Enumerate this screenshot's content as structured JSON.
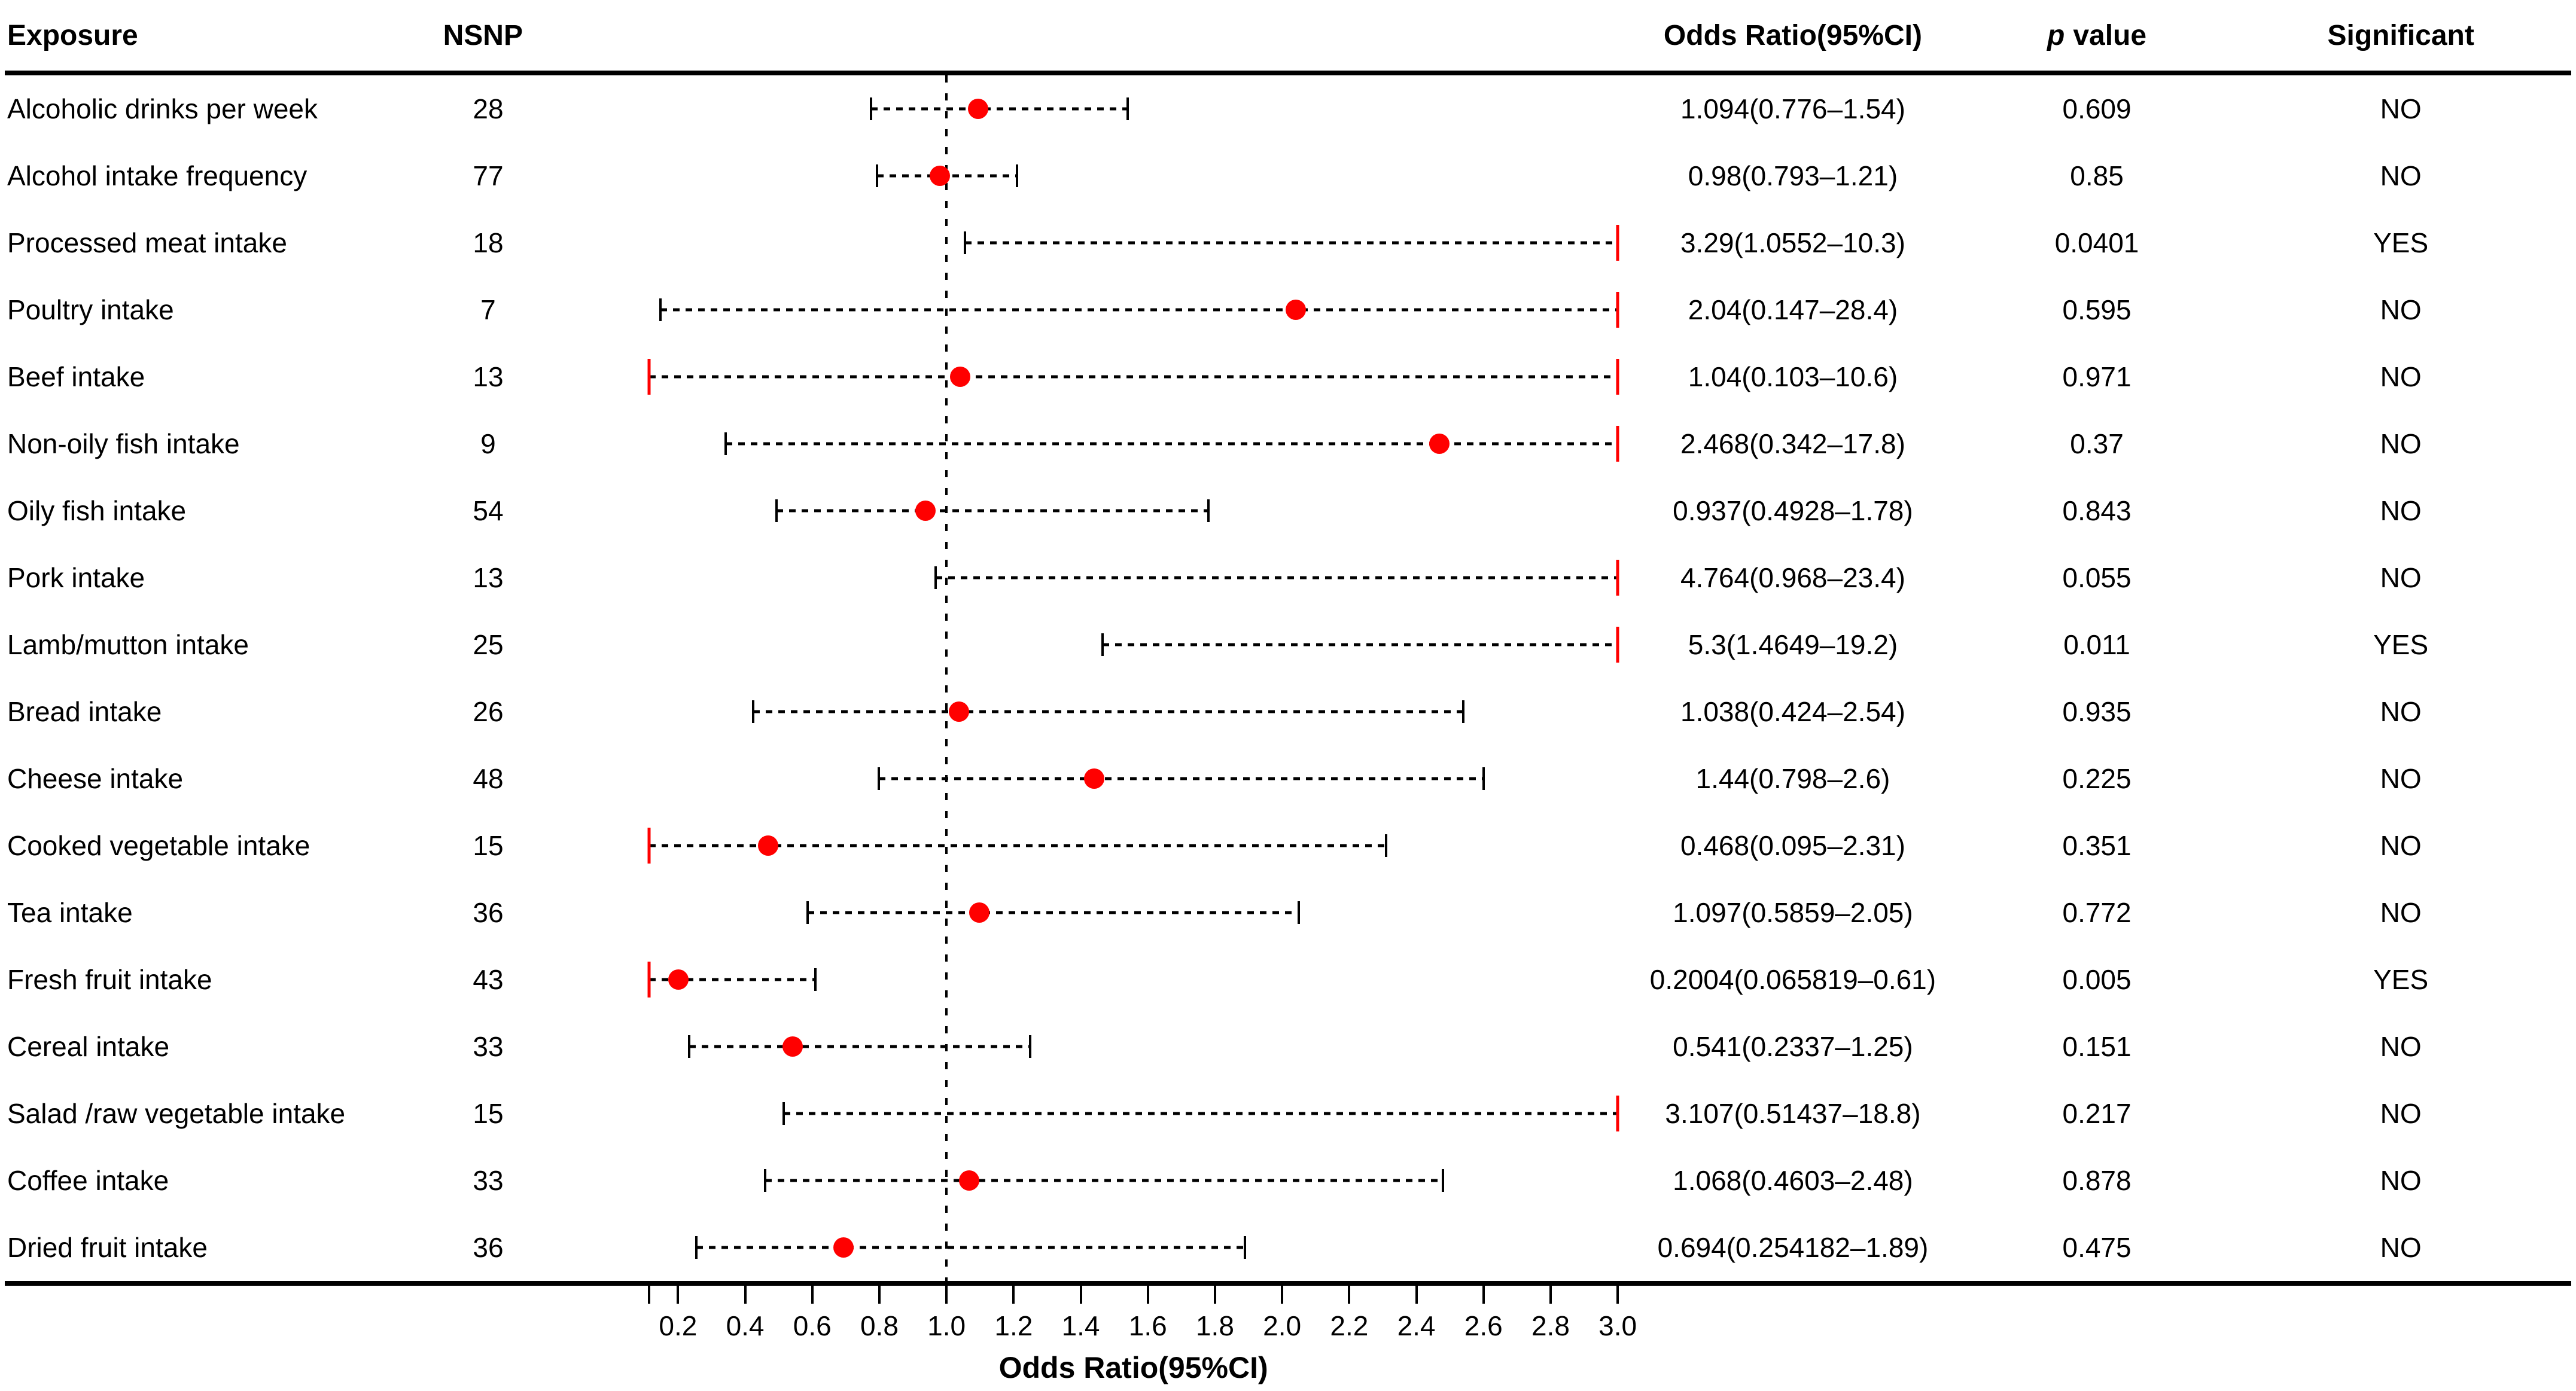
{
  "header": {
    "exposure": "Exposure",
    "nsnp": "NSNP",
    "or_ci": "Odds Ratio(95%CI)",
    "p_italic": "p",
    "p_rest": "value",
    "significant": "Significant"
  },
  "colors": {
    "point_red": "#FF0000",
    "clip_red": "#FF0000",
    "line_black": "#000000"
  },
  "chart_data": {
    "type": "scatter",
    "subtype": "forest-plot",
    "title": "",
    "xlabel": "Odds Ratio(95%CI)",
    "xlim": [
      0.114,
      3.0
    ],
    "reference_line": 1.0,
    "grid": false,
    "xticks": [
      0.2,
      0.4,
      0.6,
      0.8,
      1.0,
      1.2,
      1.4,
      1.6,
      1.8,
      2.0,
      2.2,
      2.4,
      2.6,
      2.8,
      3.0
    ],
    "xtick_labels": [
      "0.2",
      "0.4",
      "0.6",
      "0.8",
      "1.0",
      "1.2",
      "1.4",
      "1.6",
      "1.8",
      "2.0",
      "2.2",
      "2.4",
      "2.6",
      "2.8",
      "3.0"
    ],
    "rows": [
      {
        "exposure": "Alcoholic drinks per week",
        "nsnp": "28",
        "or": 1.094,
        "ci_low": 0.776,
        "ci_high": 1.54,
        "or_ci": "1.094(0.776–1.54)",
        "p": "0.609",
        "significant": "NO"
      },
      {
        "exposure": "Alcohol intake frequency",
        "nsnp": "77",
        "or": 0.98,
        "ci_low": 0.793,
        "ci_high": 1.21,
        "or_ci": "0.98(0.793–1.21)",
        "p": "0.85",
        "significant": "NO"
      },
      {
        "exposure": "Processed meat intake",
        "nsnp": "18",
        "or": 3.29,
        "ci_low": 1.0552,
        "ci_high": 10.3,
        "or_ci": "3.29(1.0552–10.3)",
        "p": "0.0401",
        "significant": "YES"
      },
      {
        "exposure": "Poultry intake",
        "nsnp": "7",
        "or": 2.04,
        "ci_low": 0.147,
        "ci_high": 28.4,
        "or_ci": "2.04(0.147–28.4)",
        "p": "0.595",
        "significant": "NO"
      },
      {
        "exposure": "Beef intake",
        "nsnp": "13",
        "or": 1.04,
        "ci_low": 0.103,
        "ci_high": 10.6,
        "or_ci": "1.04(0.103–10.6)",
        "p": "0.971",
        "significant": "NO"
      },
      {
        "exposure": "Non-oily fish intake",
        "nsnp": "9",
        "or": 2.468,
        "ci_low": 0.342,
        "ci_high": 17.8,
        "or_ci": "2.468(0.342–17.8)",
        "p": "0.37",
        "significant": "NO"
      },
      {
        "exposure": "Oily fish intake",
        "nsnp": "54",
        "or": 0.937,
        "ci_low": 0.4928,
        "ci_high": 1.78,
        "or_ci": "0.937(0.4928–1.78)",
        "p": "0.843",
        "significant": "NO"
      },
      {
        "exposure": "Pork intake",
        "nsnp": "13",
        "or": 4.764,
        "ci_low": 0.968,
        "ci_high": 23.4,
        "or_ci": "4.764(0.968–23.4)",
        "p": "0.055",
        "significant": "NO"
      },
      {
        "exposure": "Lamb/mutton intake",
        "nsnp": "25",
        "or": 5.3,
        "ci_low": 1.4649,
        "ci_high": 19.2,
        "or_ci": "5.3(1.4649–19.2)",
        "p": "0.011",
        "significant": "YES"
      },
      {
        "exposure": "Bread intake",
        "nsnp": "26",
        "or": 1.038,
        "ci_low": 0.424,
        "ci_high": 2.54,
        "or_ci": "1.038(0.424–2.54)",
        "p": "0.935",
        "significant": "NO"
      },
      {
        "exposure": "Cheese intake",
        "nsnp": "48",
        "or": 1.44,
        "ci_low": 0.798,
        "ci_high": 2.6,
        "or_ci": "1.44(0.798–2.6)",
        "p": "0.225",
        "significant": "NO"
      },
      {
        "exposure": "Cooked vegetable intake",
        "nsnp": "15",
        "or": 0.468,
        "ci_low": 0.095,
        "ci_high": 2.31,
        "or_ci": "0.468(0.095–2.31)",
        "p": "0.351",
        "significant": "NO"
      },
      {
        "exposure": "Tea intake",
        "nsnp": "36",
        "or": 1.097,
        "ci_low": 0.5859,
        "ci_high": 2.05,
        "or_ci": "1.097(0.5859–2.05)",
        "p": "0.772",
        "significant": "NO"
      },
      {
        "exposure": "Fresh fruit intake",
        "nsnp": "43",
        "or": 0.2004,
        "ci_low": 0.065819,
        "ci_high": 0.61,
        "or_ci": "0.2004(0.065819–0.61)",
        "p": "0.005",
        "significant": "YES"
      },
      {
        "exposure": "Cereal intake",
        "nsnp": "33",
        "or": 0.541,
        "ci_low": 0.2337,
        "ci_high": 1.25,
        "or_ci": "0.541(0.2337–1.25)",
        "p": "0.151",
        "significant": "NO"
      },
      {
        "exposure": "Salad /raw vegetable intake",
        "nsnp": "15",
        "or": 3.107,
        "ci_low": 0.51437,
        "ci_high": 18.8,
        "or_ci": "3.107(0.51437–18.8)",
        "p": "0.217",
        "significant": "NO"
      },
      {
        "exposure": "Coffee intake",
        "nsnp": "33",
        "or": 1.068,
        "ci_low": 0.4603,
        "ci_high": 2.48,
        "or_ci": "1.068(0.4603–2.48)",
        "p": "0.878",
        "significant": "NO"
      },
      {
        "exposure": "Dried fruit intake",
        "nsnp": "36",
        "or": 0.694,
        "ci_low": 0.254182,
        "ci_high": 1.89,
        "or_ci": "0.694(0.254182–1.89)",
        "p": "0.475",
        "significant": "NO"
      }
    ]
  }
}
